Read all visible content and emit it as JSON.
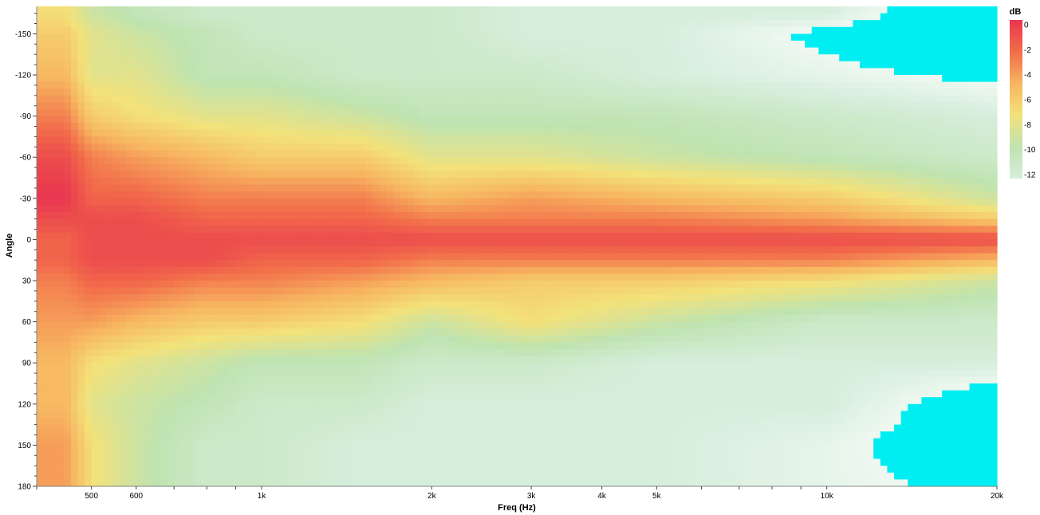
{
  "chart_data": {
    "type": "heatmap",
    "title": "",
    "xlabel": "Freq (Hz)",
    "ylabel": "Angle",
    "x_scale": "log",
    "xlim": [
      400,
      20000
    ],
    "ylim": [
      -170,
      180
    ],
    "x_ticks": [
      {
        "value": 500,
        "label": "500"
      },
      {
        "value": 600,
        "label": "600"
      },
      {
        "value": 1000,
        "label": "1k"
      },
      {
        "value": 2000,
        "label": "2k"
      },
      {
        "value": 3000,
        "label": "3k"
      },
      {
        "value": 4000,
        "label": "4k"
      },
      {
        "value": 5000,
        "label": "5k"
      },
      {
        "value": 10000,
        "label": "10k"
      },
      {
        "value": 20000,
        "label": "20k"
      }
    ],
    "y_ticks": [
      {
        "value": -150,
        "label": "-150"
      },
      {
        "value": -120,
        "label": "-120"
      },
      {
        "value": -90,
        "label": "-90"
      },
      {
        "value": -60,
        "label": "-60"
      },
      {
        "value": -30,
        "label": "-30"
      },
      {
        "value": 0,
        "label": "0"
      },
      {
        "value": 30,
        "label": "30"
      },
      {
        "value": 60,
        "label": "60"
      },
      {
        "value": 90,
        "label": "90"
      },
      {
        "value": 120,
        "label": "120"
      },
      {
        "value": 150,
        "label": "150"
      },
      {
        "value": 180,
        "label": "180"
      }
    ],
    "colorbar": {
      "title": "dB",
      "range": [
        -12,
        0
      ],
      "ticks": [
        {
          "value": 0,
          "label": "0"
        },
        {
          "value": -2,
          "label": "-2"
        },
        {
          "value": -4,
          "label": "-4"
        },
        {
          "value": -6,
          "label": "-6"
        },
        {
          "value": -8,
          "label": "-8"
        },
        {
          "value": -10,
          "label": "-10"
        },
        {
          "value": -12,
          "label": "-12"
        }
      ],
      "colors": [
        "#d6eedc",
        "#bfe3b0",
        "#f3e27a",
        "#f7b560",
        "#f26d4a",
        "#e8364f"
      ],
      "below_range_color": "#00eef2"
    },
    "freqs": [
      450,
      500,
      600,
      800,
      1000,
      1500,
      2000,
      3000,
      5000,
      10000,
      20000
    ],
    "angles": [
      -165,
      -150,
      -120,
      -90,
      -60,
      -30,
      -15,
      0,
      15,
      30,
      60,
      90,
      120,
      150,
      180
    ],
    "z": [
      [
        -7,
        -9,
        -10,
        -11,
        -11,
        -11,
        -11,
        -12,
        -12,
        -12,
        -16
      ],
      [
        -6,
        -8,
        -9,
        -10,
        -11,
        -11,
        -11,
        -12,
        -12,
        -14,
        -16
      ],
      [
        -5,
        -8,
        -8,
        -10,
        -10,
        -11,
        -11,
        -11,
        -12,
        -13,
        -14
      ],
      [
        -3,
        -6,
        -7,
        -8,
        -8,
        -9,
        -10,
        -10,
        -10,
        -11,
        -12
      ],
      [
        -1,
        -3,
        -4,
        -5,
        -6,
        -6,
        -8,
        -8,
        -9,
        -10,
        -11
      ],
      [
        0,
        -2,
        -2,
        -3,
        -3,
        -3,
        -5,
        -4,
        -5,
        -6,
        -9
      ],
      [
        -1,
        -1,
        -1,
        -2,
        -2,
        -2,
        -3,
        -3,
        -3,
        -4,
        -6
      ],
      [
        -2,
        -1,
        -1,
        -1,
        -1,
        -1,
        -1,
        -1,
        -1,
        -1,
        -1
      ],
      [
        -2,
        -1,
        -1,
        -1,
        -2,
        -2,
        -3,
        -3,
        -3,
        -3,
        -5
      ],
      [
        -3,
        -2,
        -2,
        -3,
        -3,
        -4,
        -5,
        -6,
        -6,
        -7,
        -9
      ],
      [
        -4,
        -4,
        -5,
        -6,
        -6,
        -7,
        -9,
        -7,
        -9,
        -11,
        -11
      ],
      [
        -5,
        -7,
        -8,
        -9,
        -10,
        -10,
        -11,
        -11,
        -12,
        -12,
        -12
      ],
      [
        -5,
        -8,
        -9,
        -10,
        -11,
        -11,
        -12,
        -12,
        -12,
        -12,
        -15
      ],
      [
        -4,
        -7,
        -9,
        -11,
        -11,
        -12,
        -12,
        -12,
        -12,
        -13,
        -15
      ],
      [
        -4,
        -7,
        -9,
        -11,
        -11,
        -12,
        -12,
        -12,
        -12,
        -13,
        -14
      ]
    ]
  }
}
